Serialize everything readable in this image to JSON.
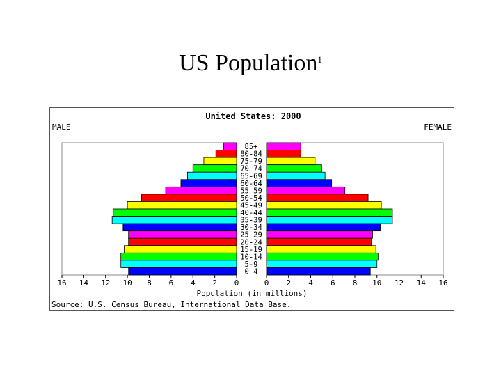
{
  "slide": {
    "title": "US Population",
    "title_superscript": "1"
  },
  "chart_data": {
    "type": "bar",
    "subtype": "population-pyramid",
    "title": "United States: 2000",
    "left_label": "MALE",
    "right_label": "FEMALE",
    "xlabel": "Population (in millions)",
    "source": "Source: U.S. Census Bureau, International Data Base.",
    "xlim": [
      0,
      16
    ],
    "x_ticks": [
      "16",
      "14",
      "12",
      "10",
      "8",
      "6",
      "4",
      "2",
      "0"
    ],
    "x_ticks_right": [
      "0",
      "2",
      "4",
      "6",
      "8",
      "10",
      "12",
      "14",
      "16"
    ],
    "categories": [
      "85+",
      "80-84",
      "75-79",
      "70-74",
      "65-69",
      "60-64",
      "55-59",
      "50-54",
      "45-49",
      "40-44",
      "35-39",
      "30-34",
      "25-29",
      "20-24",
      "15-19",
      "10-14",
      "5-9",
      "0-4"
    ],
    "series": [
      {
        "name": "MALE",
        "values": [
          1.2,
          1.9,
          3.0,
          4.0,
          4.5,
          5.1,
          6.5,
          8.7,
          10.0,
          11.3,
          11.4,
          10.4,
          9.9,
          9.9,
          10.3,
          10.6,
          10.6,
          9.9
        ]
      },
      {
        "name": "FEMALE",
        "values": [
          3.1,
          3.1,
          4.4,
          5.0,
          5.3,
          5.9,
          7.1,
          9.2,
          10.4,
          11.4,
          11.4,
          10.3,
          9.6,
          9.5,
          9.9,
          10.1,
          10.0,
          9.4
        ]
      }
    ],
    "bar_colors": [
      "#ff00ff",
      "#ff0000",
      "#ffff00",
      "#00ff00",
      "#00ffff",
      "#0000ff"
    ],
    "grid": false
  }
}
